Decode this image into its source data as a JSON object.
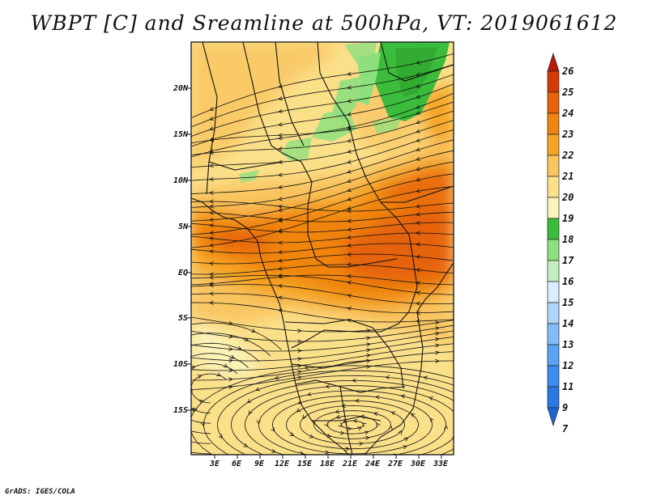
{
  "title": "WBPT [C] and Sreamline at 500hPa, VT: 2019061612",
  "footer": "GrADS: IGES/COLA",
  "map": {
    "variable": "WBPT [C]",
    "level": "500hPa",
    "valid_time": "2019061612",
    "lat_labels": [
      "20N",
      "15N",
      "10N",
      "5N",
      "EQ",
      "5S",
      "10S",
      "15S"
    ],
    "lon_labels": [
      "3E",
      "6E",
      "9E",
      "12E",
      "15E",
      "18E",
      "21E",
      "24E",
      "27E",
      "30E",
      "33E"
    ]
  },
  "colorbar": {
    "levels": [
      "7",
      "9",
      "11",
      "12",
      "13",
      "14",
      "15",
      "16",
      "17",
      "18",
      "19",
      "20",
      "21",
      "22",
      "23",
      "24",
      "25",
      "26"
    ],
    "colors": [
      "#1e64d8",
      "#2a78e6",
      "#3c8ef0",
      "#5aa4f5",
      "#82bcf8",
      "#aed4fa",
      "#d8eefc",
      "#c4edbf",
      "#8ee07e",
      "#3cbc3c",
      "#fbf3b8",
      "#fbe08a",
      "#f9c560",
      "#f5a424",
      "#f08410",
      "#e66408",
      "#d43c06",
      "#b81c08"
    ]
  }
}
